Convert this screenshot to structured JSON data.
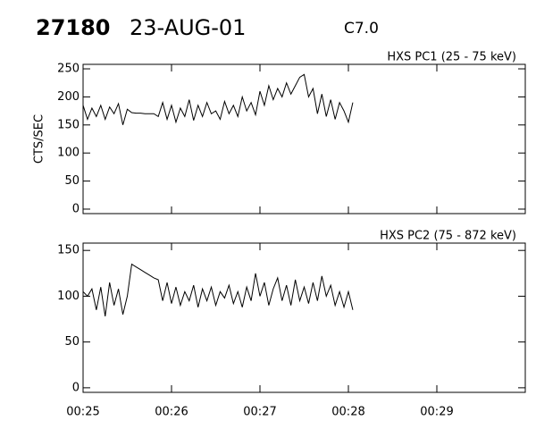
{
  "header": {
    "id": "27180",
    "date": "23-AUG-01",
    "class": "C7.0"
  },
  "chart_data": [
    {
      "type": "line",
      "title": "HXS PC1 (25 - 75 keV)",
      "y_label": "CTS/SEC",
      "color": "#000000",
      "x": [
        25,
        25.05,
        25.1,
        25.15,
        25.2,
        25.25,
        25.3,
        25.35,
        25.4,
        25.45,
        25.5,
        25.55,
        25.6,
        25.65,
        25.7,
        25.75,
        25.8,
        25.85,
        25.9,
        25.95,
        26,
        26.05,
        26.1,
        26.15,
        26.2,
        26.25,
        26.3,
        26.35,
        26.4,
        26.45,
        26.5,
        26.55,
        26.6,
        26.65,
        26.7,
        26.75,
        26.8,
        26.85,
        26.9,
        26.95,
        27,
        27.05,
        27.1,
        27.15,
        27.2,
        27.25,
        27.3,
        27.35,
        27.4,
        27.45,
        27.5,
        27.55,
        27.6,
        27.65,
        27.7,
        27.75,
        27.8,
        27.85,
        27.9,
        27.95,
        28,
        28.05
      ],
      "values": [
        185,
        160,
        180,
        165,
        185,
        160,
        182,
        170,
        188,
        150,
        178,
        172,
        171,
        171,
        170,
        170,
        170,
        165,
        190,
        160,
        185,
        155,
        180,
        165,
        195,
        158,
        185,
        165,
        190,
        170,
        175,
        160,
        192,
        170,
        185,
        165,
        200,
        175,
        190,
        168,
        210,
        185,
        220,
        195,
        215,
        200,
        225,
        205,
        220,
        235,
        240,
        200,
        215,
        170,
        205,
        165,
        195,
        160,
        190,
        175,
        155,
        190
      ],
      "xlim": [
        25,
        30
      ],
      "xticks": [
        25,
        26,
        27,
        28,
        29,
        30
      ],
      "ylim": [
        -8,
        258
      ],
      "yticks": [
        0,
        50,
        100,
        150,
        200,
        250
      ]
    },
    {
      "type": "line",
      "title": "HXS PC2 (75 - 872 keV)",
      "color": "#000000",
      "x": [
        25,
        25.05,
        25.1,
        25.15,
        25.2,
        25.25,
        25.3,
        25.35,
        25.4,
        25.45,
        25.5,
        25.55,
        25.6,
        25.65,
        25.7,
        25.75,
        25.8,
        25.85,
        25.9,
        25.95,
        26,
        26.05,
        26.1,
        26.15,
        26.2,
        26.25,
        26.3,
        26.35,
        26.4,
        26.45,
        26.5,
        26.55,
        26.6,
        26.65,
        26.7,
        26.75,
        26.8,
        26.85,
        26.9,
        26.95,
        27,
        27.05,
        27.1,
        27.15,
        27.2,
        27.25,
        27.3,
        27.35,
        27.4,
        27.45,
        27.5,
        27.55,
        27.6,
        27.65,
        27.7,
        27.75,
        27.8,
        27.85,
        27.9,
        27.95,
        28,
        28.05
      ],
      "values": [
        105,
        100,
        108,
        85,
        110,
        78,
        115,
        90,
        108,
        80,
        100,
        135,
        132,
        129,
        126,
        123,
        120,
        118,
        95,
        115,
        92,
        110,
        90,
        105,
        95,
        112,
        88,
        108,
        95,
        110,
        90,
        105,
        98,
        112,
        92,
        105,
        88,
        110,
        95,
        125,
        100,
        115,
        90,
        108,
        120,
        95,
        112,
        90,
        118,
        95,
        110,
        92,
        115,
        95,
        122,
        100,
        112,
        90,
        105,
        88,
        105,
        85
      ],
      "xlim": [
        25,
        30
      ],
      "xticks": [
        {
          "value": 25,
          "label": "00:25"
        },
        {
          "value": 26,
          "label": "00:26"
        },
        {
          "value": 27,
          "label": "00:27"
        },
        {
          "value": 28,
          "label": "00:28"
        },
        {
          "value": 29,
          "label": "00:29"
        },
        {
          "value": 30,
          "label": ""
        }
      ],
      "ylim": [
        -5,
        158
      ],
      "yticks": [
        0,
        50,
        100,
        150
      ]
    }
  ]
}
